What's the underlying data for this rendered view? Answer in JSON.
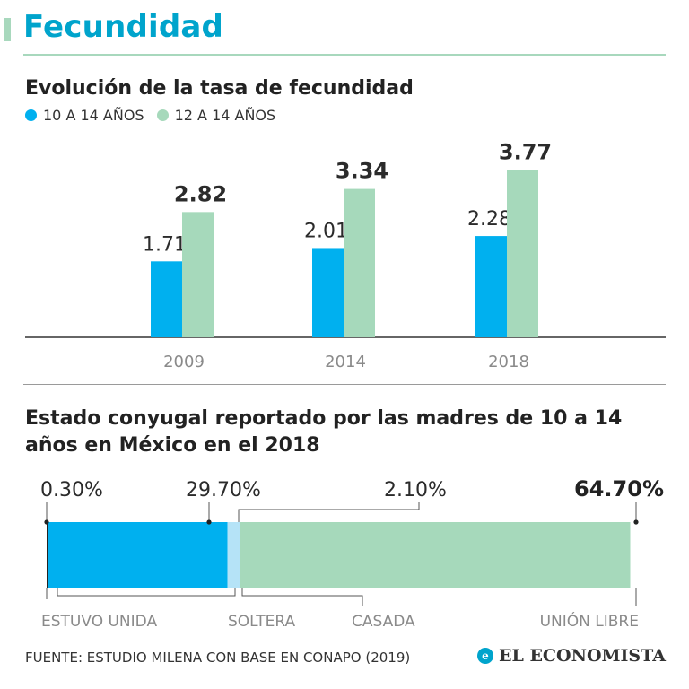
{
  "header": {
    "title": "Fecundidad"
  },
  "colors": {
    "blue": "#00b0ef",
    "green": "#a6d9bb",
    "light_blue": "#b5e3f7",
    "title_blue": "#00a4cc",
    "rule": "#a8d8bd",
    "axis": "#333333",
    "leader": "#555555",
    "label_gray": "#8a8a8a"
  },
  "chart_data": [
    {
      "type": "bar",
      "title": "Evolución de la tasa de fecundidad",
      "categories": [
        "2009",
        "2014",
        "2018"
      ],
      "series": [
        {
          "name": "10 A 14 AÑOS",
          "values": [
            1.71,
            2.01,
            2.28
          ],
          "value_labels": [
            "1.71",
            "2.01",
            "2.28"
          ],
          "color": "#00b0ef",
          "label_bold": false
        },
        {
          "name": "12 A 14 AÑOS",
          "values": [
            2.82,
            3.34,
            3.77
          ],
          "value_labels": [
            "2.82",
            "3.34",
            "3.77"
          ],
          "color": "#a6d9bb",
          "label_bold": true
        }
      ],
      "ylim": [
        0,
        4.2
      ],
      "grid": false,
      "legend": "top-left"
    },
    {
      "type": "bar",
      "orientation": "horizontal-stacked-100",
      "title": "Estado conyugal reportado por las madres de 10 a 14 años en México en el 2018",
      "segments": [
        {
          "name": "ESTUVO UNIDA",
          "value": 0.3,
          "label": "0.30%",
          "color": "#222222",
          "label_bold": false
        },
        {
          "name": "SOLTERA",
          "value": 29.7,
          "label": "29.70%",
          "color": "#00b0ef",
          "label_bold": false
        },
        {
          "name": "CASADA",
          "value": 2.1,
          "label": "2.10%",
          "color": "#b5e3f7",
          "label_bold": false
        },
        {
          "name": "UNIÓN LIBRE",
          "value": 64.7,
          "label": "64.70%",
          "color": "#a6d9bb",
          "label_bold": true
        }
      ],
      "xlim": [
        0,
        100
      ]
    }
  ],
  "footer": {
    "source": "FUENTE: ESTUDIO MILENA CON BASE EN CONAPO (2019)",
    "brand": "EL ECONOMISTA",
    "brand_icon": "economista-logo-icon"
  }
}
